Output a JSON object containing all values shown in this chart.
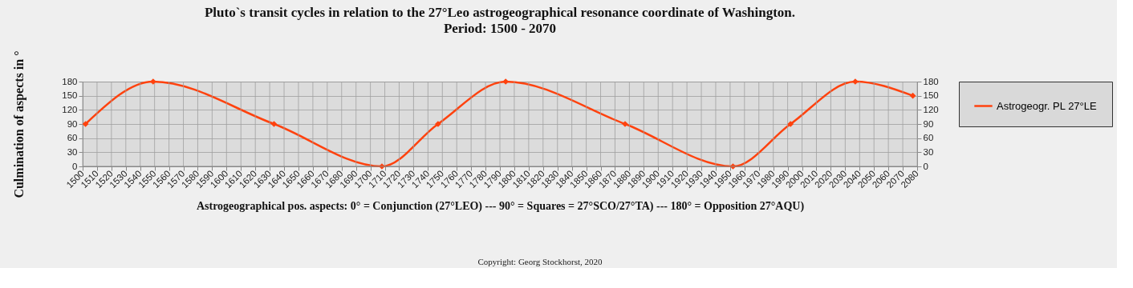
{
  "chart_data": {
    "type": "line",
    "title": "Pluto`s transit cycles in relation to the 27°Leo astrogeographical resonance coordinate of Washington.",
    "subtitle": "Period: 1500 - 2070",
    "ylabel": "Culmination of aspects in °",
    "xlabel": "Astrogeographical pos. aspects: 0° = Conjunction (27°LEO)  ---  90° = Squares = 27°SCO/27°TA)  --- 180° = Opposition 27°AQU)",
    "annotations": [
      "Copyright: Georg Stockhorst, 2020"
    ],
    "x": [
      1502,
      1549,
      1633,
      1708,
      1747,
      1794,
      1877,
      1952,
      1992,
      2037,
      2077
    ],
    "series": [
      {
        "name": "Astrogeogr. PL 27°LE",
        "color": "#ff420e",
        "values": [
          90,
          180,
          90,
          0,
          90,
          180,
          90,
          0,
          90,
          180,
          150
        ]
      }
    ],
    "xlim": [
      1500,
      2080
    ],
    "xticks": [
      1500,
      1510,
      1520,
      1530,
      1540,
      1550,
      1560,
      1570,
      1580,
      1590,
      1600,
      1610,
      1620,
      1630,
      1640,
      1650,
      1660,
      1670,
      1680,
      1690,
      1700,
      1710,
      1720,
      1730,
      1740,
      1750,
      1760,
      1770,
      1780,
      1790,
      1800,
      1810,
      1820,
      1830,
      1840,
      1850,
      1860,
      1870,
      1880,
      1890,
      1900,
      1910,
      1920,
      1930,
      1940,
      1950,
      1960,
      1970,
      1980,
      1990,
      2000,
      2010,
      2020,
      2030,
      2040,
      2050,
      2060,
      2070,
      2080
    ],
    "ylim": [
      0,
      180
    ],
    "yticks": [
      0,
      30,
      60,
      90,
      120,
      150,
      180
    ],
    "y2lim": [
      0,
      180
    ],
    "y2ticks": [
      0,
      30,
      60,
      90,
      120,
      150,
      180
    ],
    "grid": true,
    "legend": "right",
    "marker": "diamond",
    "line_style": "solid"
  }
}
